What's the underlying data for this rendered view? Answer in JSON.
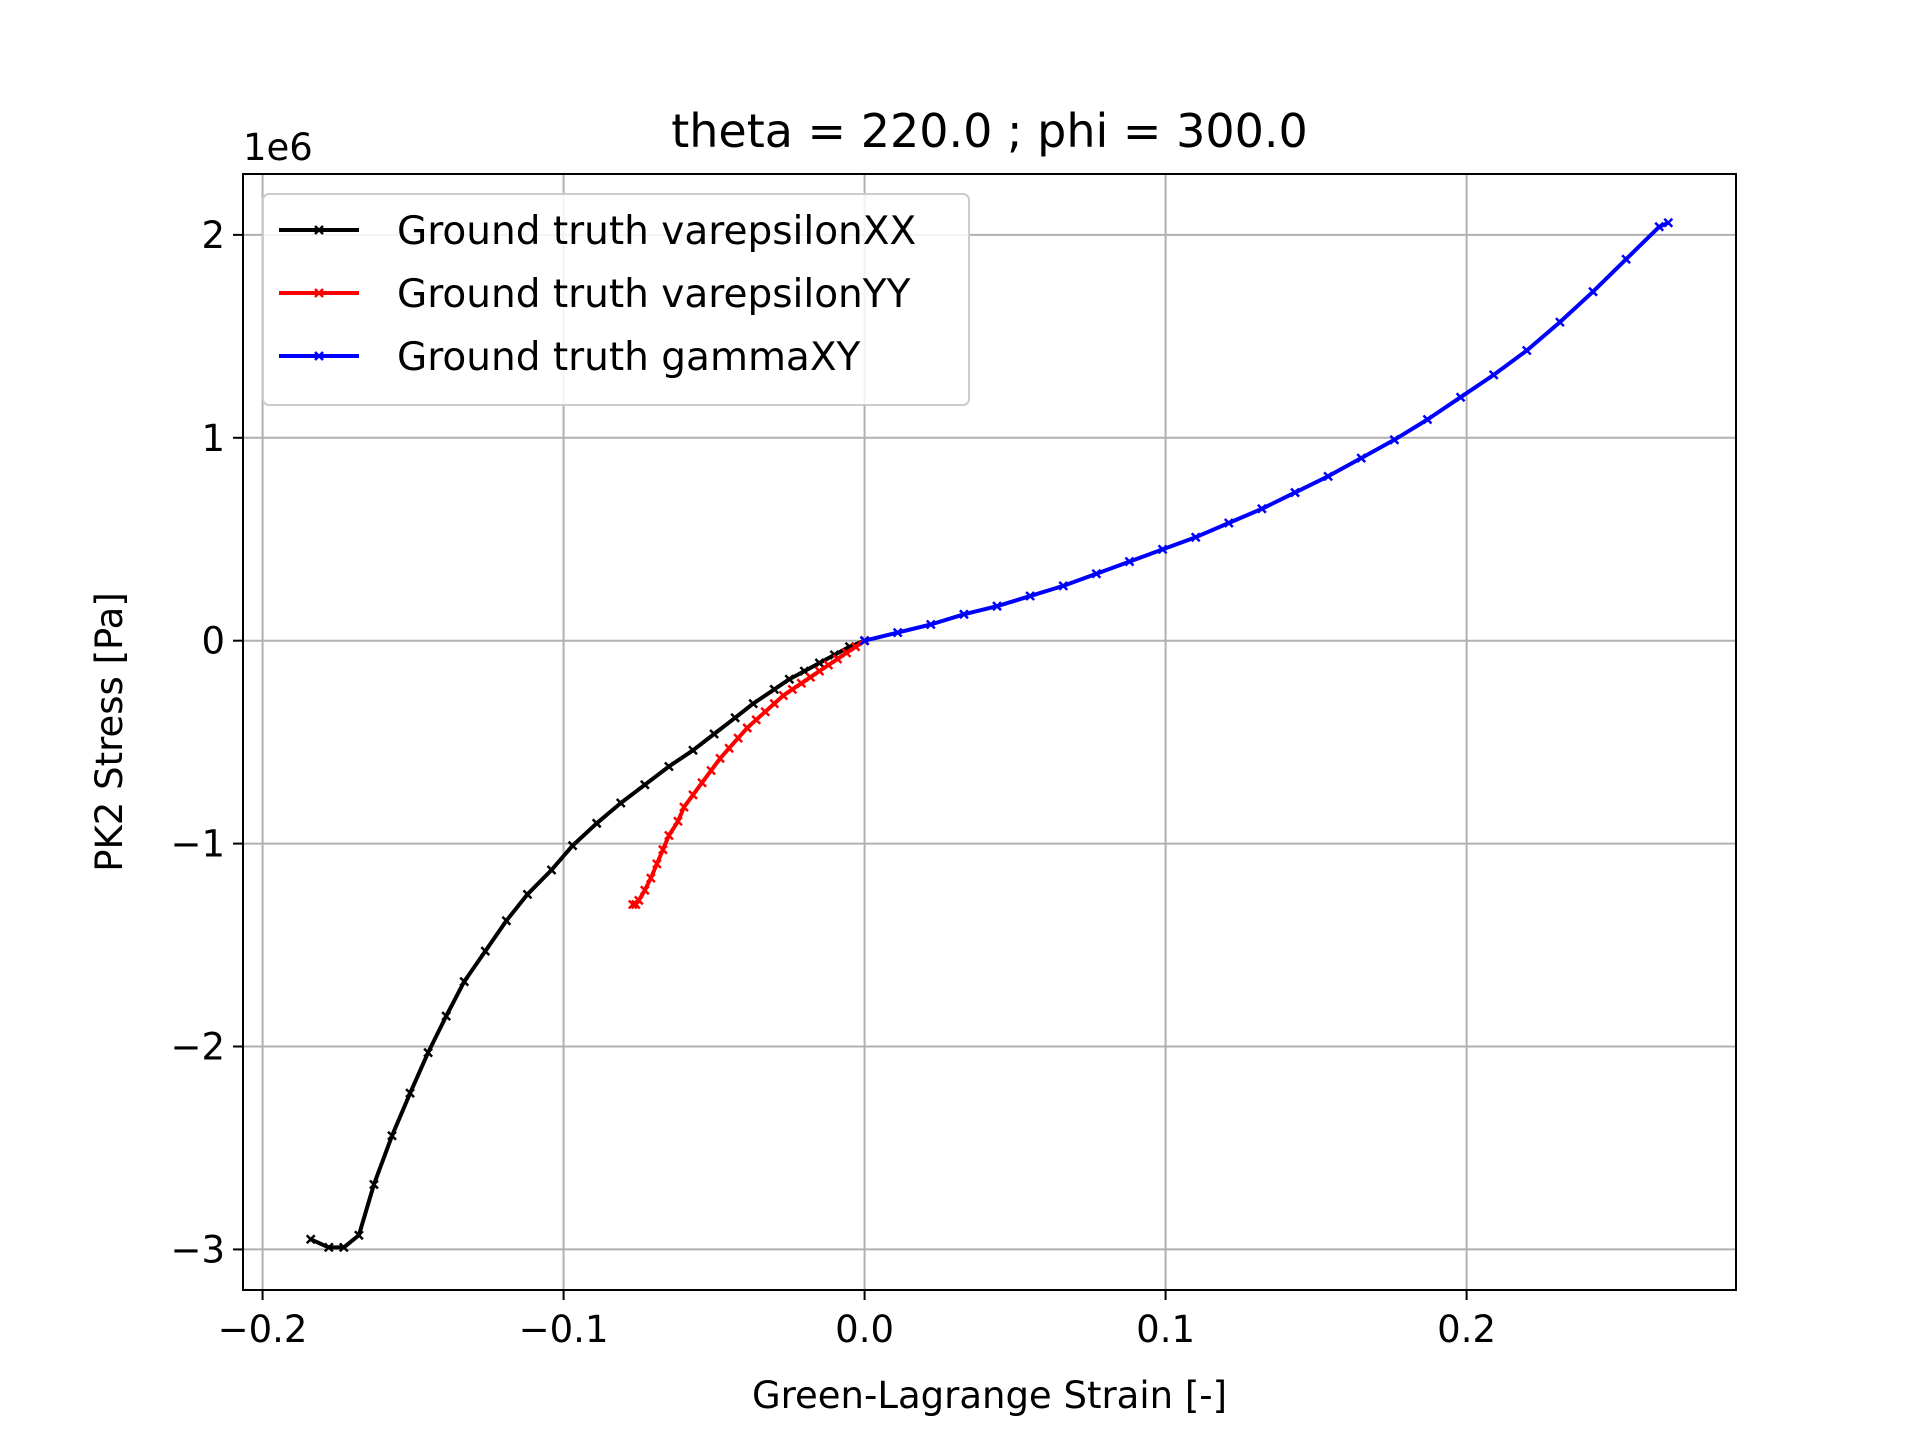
{
  "chart_data": {
    "type": "line",
    "title": "theta = 220.0 ; phi = 300.0",
    "xlabel": "Green-Lagrange Strain [-]",
    "ylabel": "PK2 Stress [Pa]",
    "y_offset_text": "1e6",
    "y_scale_factor": 1000000,
    "xlim": [
      -0.2065,
      0.2895
    ],
    "ylim": [
      -3.2,
      2.3
    ],
    "x_ticks": [
      -0.2,
      -0.1,
      0.0,
      0.1,
      0.2
    ],
    "x_tick_labels": [
      "−0.2",
      "−0.1",
      "0.0",
      "0.1",
      "0.2"
    ],
    "y_ticks": [
      -3,
      -2,
      -1,
      0,
      1,
      2
    ],
    "y_tick_labels": [
      "−3",
      "−2",
      "−1",
      "0",
      "1",
      "2"
    ],
    "grid": true,
    "legend_position": "upper-left",
    "series": [
      {
        "name": "Ground truth varepsilonXX",
        "color": "#000000",
        "marker": "x",
        "x": [
          0,
          -0.005,
          -0.01,
          -0.015,
          -0.02,
          -0.025,
          -0.03,
          -0.037,
          -0.043,
          -0.05,
          -0.057,
          -0.065,
          -0.073,
          -0.081,
          -0.089,
          -0.097,
          -0.104,
          -0.112,
          -0.119,
          -0.126,
          -0.133,
          -0.139,
          -0.145,
          -0.151,
          -0.157,
          -0.163,
          -0.168,
          -0.173,
          -0.178,
          -0.184
        ],
        "y": [
          0,
          -0.03,
          -0.07,
          -0.11,
          -0.15,
          -0.19,
          -0.24,
          -0.31,
          -0.38,
          -0.46,
          -0.54,
          -0.62,
          -0.71,
          -0.8,
          -0.9,
          -1.01,
          -1.13,
          -1.25,
          -1.38,
          -1.53,
          -1.68,
          -1.85,
          -2.03,
          -2.23,
          -2.44,
          -2.68,
          -2.93,
          -2.99,
          -2.99,
          -2.95
        ]
      },
      {
        "name": "Ground truth varepsilonYY",
        "color": "#ff0000",
        "marker": "x",
        "x": [
          0,
          -0.003,
          -0.006,
          -0.009,
          -0.012,
          -0.015,
          -0.018,
          -0.021,
          -0.024,
          -0.027,
          -0.03,
          -0.033,
          -0.036,
          -0.039,
          -0.042,
          -0.045,
          -0.048,
          -0.051,
          -0.054,
          -0.057,
          -0.06,
          -0.062,
          -0.065,
          -0.067,
          -0.069,
          -0.071,
          -0.073,
          -0.075,
          -0.076,
          -0.077
        ],
        "y": [
          0,
          -0.03,
          -0.06,
          -0.09,
          -0.12,
          -0.15,
          -0.18,
          -0.21,
          -0.24,
          -0.27,
          -0.31,
          -0.35,
          -0.39,
          -0.43,
          -0.48,
          -0.53,
          -0.58,
          -0.64,
          -0.7,
          -0.76,
          -0.82,
          -0.89,
          -0.96,
          -1.03,
          -1.1,
          -1.17,
          -1.23,
          -1.28,
          -1.3,
          -1.3
        ]
      },
      {
        "name": "Ground truth gammaXY",
        "color": "#0000ff",
        "marker": "x",
        "x": [
          0,
          0.011,
          0.022,
          0.033,
          0.044,
          0.055,
          0.066,
          0.077,
          0.088,
          0.099,
          0.11,
          0.121,
          0.132,
          0.143,
          0.154,
          0.165,
          0.176,
          0.187,
          0.198,
          0.209,
          0.22,
          0.231,
          0.242,
          0.253,
          0.264,
          0.267
        ],
        "y": [
          0,
          0.04,
          0.08,
          0.13,
          0.17,
          0.22,
          0.27,
          0.33,
          0.39,
          0.45,
          0.51,
          0.58,
          0.65,
          0.73,
          0.81,
          0.9,
          0.99,
          1.09,
          1.2,
          1.31,
          1.43,
          1.57,
          1.72,
          1.88,
          2.04,
          2.06
        ]
      }
    ]
  }
}
